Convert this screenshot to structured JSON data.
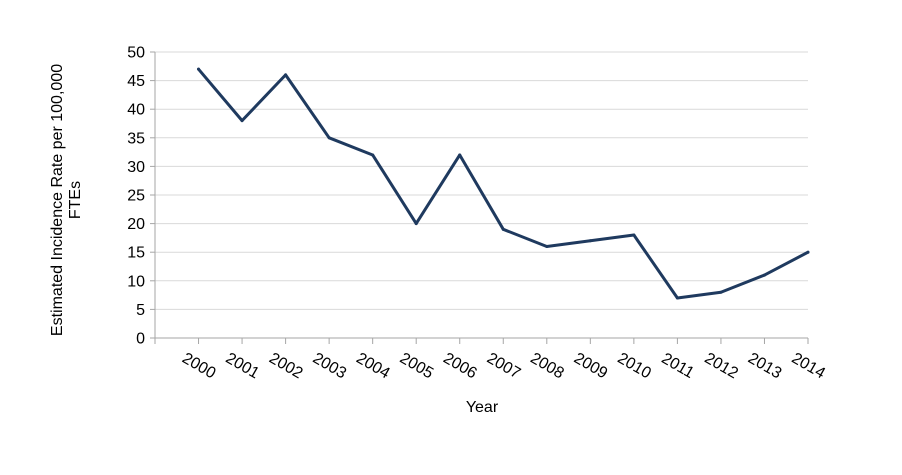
{
  "chart_data": {
    "type": "line",
    "title": "",
    "xlabel": "Year",
    "ylabel_lines": [
      "Estimated Incidence Rate per 100,000",
      "FTEs"
    ],
    "ylim": [
      0,
      50
    ],
    "y_ticks": [
      0,
      5,
      10,
      15,
      20,
      25,
      30,
      35,
      40,
      45,
      50
    ],
    "categories": [
      "2000",
      "2001",
      "2002",
      "2003",
      "2004",
      "2005",
      "2006",
      "2007",
      "2008",
      "2009",
      "2010",
      "2011",
      "2012",
      "2013",
      "2014"
    ],
    "series": [
      {
        "values": [
          47,
          38,
          46,
          35,
          32,
          20,
          32,
          19,
          16,
          17,
          18,
          7,
          8,
          11,
          15
        ],
        "color": "#1f3a5f"
      }
    ],
    "grid": true,
    "grid_color": "#d9d9d9",
    "axis_color": "#a6a6a6",
    "legend": "none"
  }
}
